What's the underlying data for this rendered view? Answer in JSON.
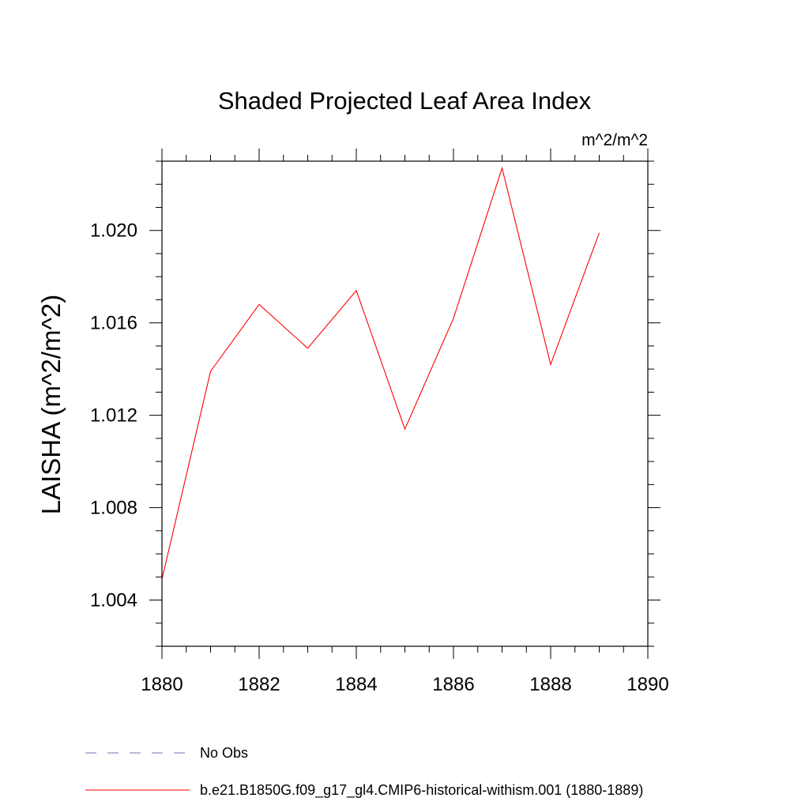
{
  "chart_data": {
    "type": "line",
    "title": "Shaded Projected Leaf Area Index",
    "units": "m^2/m^2",
    "ylabel": "LAISHA  (m^2/m^2)",
    "xlabel": "",
    "xlim": [
      1880,
      1890
    ],
    "ylim": [
      1.002,
      1.023
    ],
    "x_major_ticks": [
      1880,
      1882,
      1884,
      1886,
      1888,
      1890
    ],
    "x_tick_labels": [
      "1880",
      "1882",
      "1884",
      "1886",
      "1888",
      "1890"
    ],
    "y_major_ticks": [
      1.004,
      1.008,
      1.012,
      1.016,
      1.02
    ],
    "y_tick_labels": [
      "1.004",
      "1.008",
      "1.012",
      "1.016",
      "1.020"
    ],
    "grid": false,
    "legend_position": "bottom-left",
    "series": [
      {
        "name": "b.e21.B1850G.f09_g17_gl4.CMIP6-historical-withism.001 (1880-1889)",
        "color": "#ff0000",
        "style": "solid",
        "x": [
          1880,
          1881,
          1882,
          1883,
          1884,
          1885,
          1886,
          1887,
          1888,
          1889
        ],
        "y": [
          1.0049,
          1.0139,
          1.0168,
          1.0149,
          1.0174,
          1.0114,
          1.0162,
          1.0227,
          1.0142,
          1.0199
        ]
      }
    ],
    "legend": [
      {
        "label": "No Obs",
        "color": "#7b6fb0",
        "style": "dashed"
      },
      {
        "label": "b.e21.B1850G.f09_g17_gl4.CMIP6-historical-withism.001 (1880-1889)",
        "color": "#ff0000",
        "style": "solid"
      }
    ]
  }
}
